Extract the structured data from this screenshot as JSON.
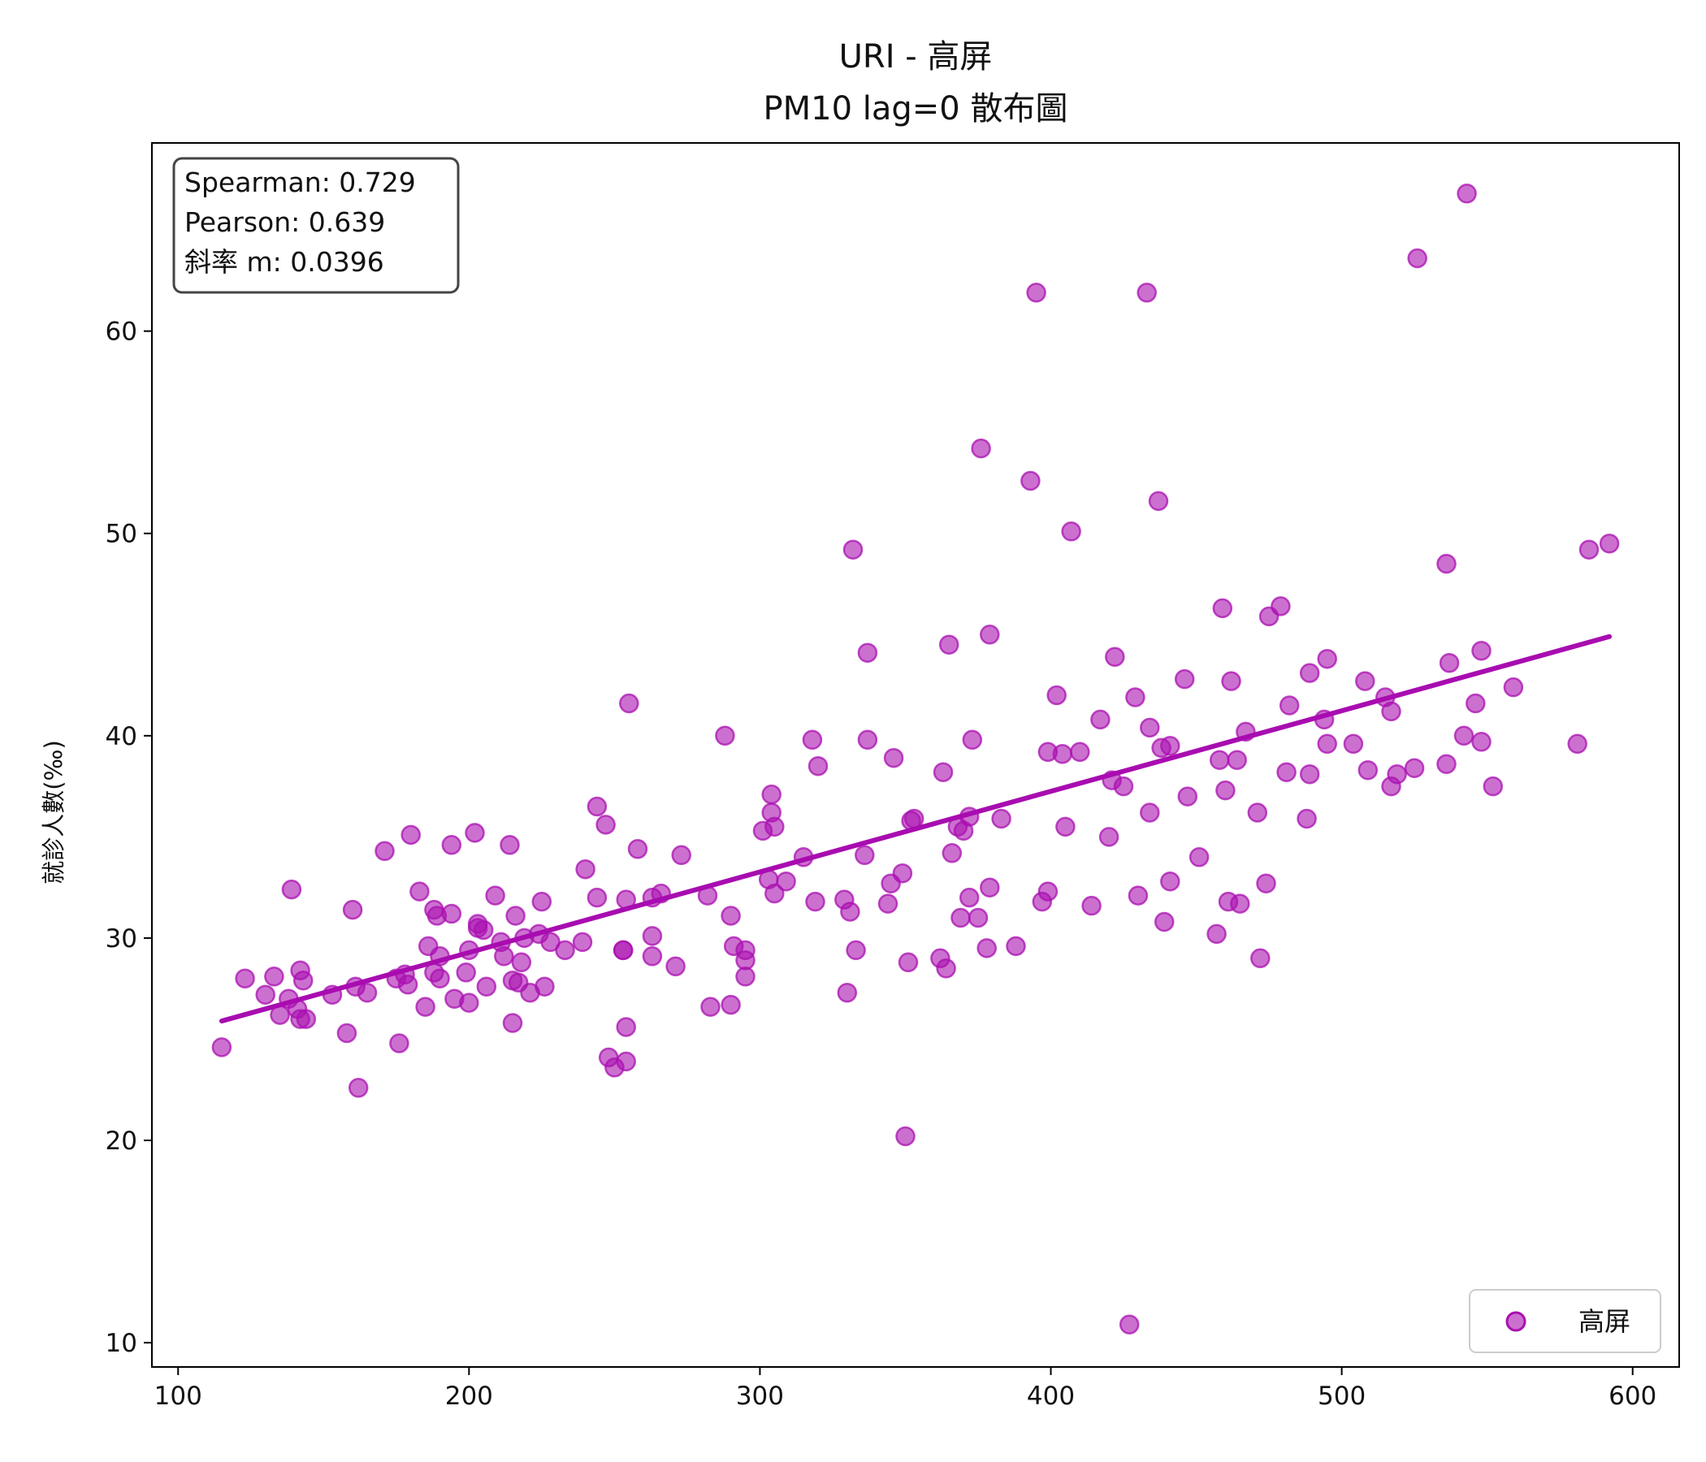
{
  "chart_data": {
    "type": "scatter",
    "title": "URI - 高屏",
    "subtitle": "PM10 lag=0 散布圖",
    "xlabel": "",
    "ylabel": "就診人數(‰)",
    "xlim": [
      91,
      616
    ],
    "ylim": [
      8.8,
      69.3
    ],
    "xticks": [
      100,
      200,
      300,
      400,
      500,
      600
    ],
    "yticks": [
      10,
      20,
      30,
      40,
      50,
      60
    ],
    "grid": false,
    "legend_position": "lower-right",
    "stats": {
      "spearman": "Spearman: 0.729",
      "pearson": "Pearson: 0.639",
      "slope": "斜率 m: 0.0396"
    },
    "series": [
      {
        "name": "高屏",
        "color": "#aa10b0",
        "points": [
          [
            115,
            24.6
          ],
          [
            123,
            28.0
          ],
          [
            130,
            27.2
          ],
          [
            133,
            28.1
          ],
          [
            135,
            26.2
          ],
          [
            138,
            27.0
          ],
          [
            139,
            32.4
          ],
          [
            141,
            26.5
          ],
          [
            142,
            28.4
          ],
          [
            142,
            26.0
          ],
          [
            143,
            27.9
          ],
          [
            144,
            26.0
          ],
          [
            153,
            27.2
          ],
          [
            158,
            25.3
          ],
          [
            160,
            31.4
          ],
          [
            161,
            27.6
          ],
          [
            162,
            22.6
          ],
          [
            165,
            27.3
          ],
          [
            171,
            34.3
          ],
          [
            175,
            28.0
          ],
          [
            176,
            24.8
          ],
          [
            178,
            28.2
          ],
          [
            179,
            27.7
          ],
          [
            180,
            35.1
          ],
          [
            183,
            32.3
          ],
          [
            185,
            26.6
          ],
          [
            186,
            29.6
          ],
          [
            188,
            31.4
          ],
          [
            188,
            28.3
          ],
          [
            189,
            31.1
          ],
          [
            190,
            28.0
          ],
          [
            190,
            29.1
          ],
          [
            194,
            31.2
          ],
          [
            194,
            34.6
          ],
          [
            195,
            27.0
          ],
          [
            199,
            28.3
          ],
          [
            200,
            26.8
          ],
          [
            200,
            29.4
          ],
          [
            203,
            30.5
          ],
          [
            202,
            35.2
          ],
          [
            203,
            30.7
          ],
          [
            205,
            30.4
          ],
          [
            206,
            27.6
          ],
          [
            209,
            32.1
          ],
          [
            211,
            29.8
          ],
          [
            212,
            29.1
          ],
          [
            214,
            34.6
          ],
          [
            215,
            27.9
          ],
          [
            215,
            25.8
          ],
          [
            216,
            31.1
          ],
          [
            217,
            27.8
          ],
          [
            218,
            28.8
          ],
          [
            219,
            30.0
          ],
          [
            221,
            27.3
          ],
          [
            224,
            30.2
          ],
          [
            225,
            31.8
          ],
          [
            226,
            27.6
          ],
          [
            228,
            29.8
          ],
          [
            233,
            29.4
          ],
          [
            239,
            29.8
          ],
          [
            240,
            33.4
          ],
          [
            244,
            32.0
          ],
          [
            244,
            36.5
          ],
          [
            247,
            35.6
          ],
          [
            248,
            24.1
          ],
          [
            250,
            23.6
          ],
          [
            253,
            29.4
          ],
          [
            253,
            29.4
          ],
          [
            254,
            25.6
          ],
          [
            254,
            23.9
          ],
          [
            254,
            31.9
          ],
          [
            255,
            41.6
          ],
          [
            258,
            34.4
          ],
          [
            263,
            32.0
          ],
          [
            263,
            29.1
          ],
          [
            263,
            30.1
          ],
          [
            266,
            32.2
          ],
          [
            271,
            28.6
          ],
          [
            273,
            34.1
          ],
          [
            282,
            32.1
          ],
          [
            283,
            26.6
          ],
          [
            288,
            40.0
          ],
          [
            290,
            26.7
          ],
          [
            290,
            31.1
          ],
          [
            291,
            29.6
          ],
          [
            295,
            28.9
          ],
          [
            295,
            29.4
          ],
          [
            295,
            28.1
          ],
          [
            301,
            35.3
          ],
          [
            303,
            32.9
          ],
          [
            304,
            36.2
          ],
          [
            304,
            37.1
          ],
          [
            305,
            35.5
          ],
          [
            305,
            32.2
          ],
          [
            309,
            32.8
          ],
          [
            315,
            34.0
          ],
          [
            318,
            39.8
          ],
          [
            319,
            31.8
          ],
          [
            320,
            38.5
          ],
          [
            329,
            31.9
          ],
          [
            330,
            27.3
          ],
          [
            331,
            31.3
          ],
          [
            332,
            49.2
          ],
          [
            333,
            29.4
          ],
          [
            336,
            34.1
          ],
          [
            337,
            39.8
          ],
          [
            337,
            44.1
          ],
          [
            344,
            31.7
          ],
          [
            345,
            32.7
          ],
          [
            346,
            38.9
          ],
          [
            349,
            33.2
          ],
          [
            350,
            20.2
          ],
          [
            351,
            28.8
          ],
          [
            352,
            35.8
          ],
          [
            353,
            35.9
          ],
          [
            362,
            29.0
          ],
          [
            363,
            38.2
          ],
          [
            364,
            28.5
          ],
          [
            365,
            44.5
          ],
          [
            366,
            34.2
          ],
          [
            368,
            35.5
          ],
          [
            369,
            31.0
          ],
          [
            370,
            35.3
          ],
          [
            372,
            32.0
          ],
          [
            372,
            36.0
          ],
          [
            373,
            39.8
          ],
          [
            375,
            31.0
          ],
          [
            376,
            54.2
          ],
          [
            378,
            29.5
          ],
          [
            379,
            32.5
          ],
          [
            379,
            45.0
          ],
          [
            383,
            35.9
          ],
          [
            388,
            29.6
          ],
          [
            393,
            52.6
          ],
          [
            395,
            61.9
          ],
          [
            397,
            31.8
          ],
          [
            399,
            32.3
          ],
          [
            399,
            39.2
          ],
          [
            402,
            42.0
          ],
          [
            404,
            39.1
          ],
          [
            405,
            35.5
          ],
          [
            407,
            50.1
          ],
          [
            410,
            39.2
          ],
          [
            414,
            31.6
          ],
          [
            417,
            40.8
          ],
          [
            420,
            35.0
          ],
          [
            421,
            37.8
          ],
          [
            422,
            43.9
          ],
          [
            425,
            37.5
          ],
          [
            427,
            10.9
          ],
          [
            429,
            41.9
          ],
          [
            430,
            32.1
          ],
          [
            433,
            61.9
          ],
          [
            434,
            40.4
          ],
          [
            434,
            36.2
          ],
          [
            437,
            51.6
          ],
          [
            438,
            39.4
          ],
          [
            439,
            30.8
          ],
          [
            441,
            39.5
          ],
          [
            441,
            32.8
          ],
          [
            446,
            42.8
          ],
          [
            447,
            37.0
          ],
          [
            451,
            34.0
          ],
          [
            457,
            30.2
          ],
          [
            458,
            38.8
          ],
          [
            459,
            46.3
          ],
          [
            460,
            37.3
          ],
          [
            461,
            31.8
          ],
          [
            462,
            42.7
          ],
          [
            464,
            38.8
          ],
          [
            465,
            31.7
          ],
          [
            467,
            40.2
          ],
          [
            471,
            36.2
          ],
          [
            472,
            29.0
          ],
          [
            474,
            32.7
          ],
          [
            475,
            45.9
          ],
          [
            479,
            46.4
          ],
          [
            481,
            38.2
          ],
          [
            482,
            41.5
          ],
          [
            488,
            35.9
          ],
          [
            489,
            38.1
          ],
          [
            489,
            43.1
          ],
          [
            494,
            40.8
          ],
          [
            495,
            43.8
          ],
          [
            495,
            39.6
          ],
          [
            504,
            39.6
          ],
          [
            508,
            42.7
          ],
          [
            509,
            38.3
          ],
          [
            515,
            41.9
          ],
          [
            517,
            37.5
          ],
          [
            517,
            41.2
          ],
          [
            519,
            38.1
          ],
          [
            525,
            38.4
          ],
          [
            526,
            63.6
          ],
          [
            536,
            38.6
          ],
          [
            536,
            48.5
          ],
          [
            537,
            43.6
          ],
          [
            542,
            40.0
          ],
          [
            543,
            66.8
          ],
          [
            546,
            41.6
          ],
          [
            548,
            39.7
          ],
          [
            548,
            44.2
          ],
          [
            552,
            37.5
          ],
          [
            559,
            42.4
          ],
          [
            581,
            39.6
          ],
          [
            585,
            49.2
          ],
          [
            592,
            49.5
          ]
        ]
      }
    ],
    "fit_line": {
      "x": [
        115,
        592
      ],
      "y": [
        25.9,
        44.9
      ],
      "color": "#a80cb0"
    }
  }
}
